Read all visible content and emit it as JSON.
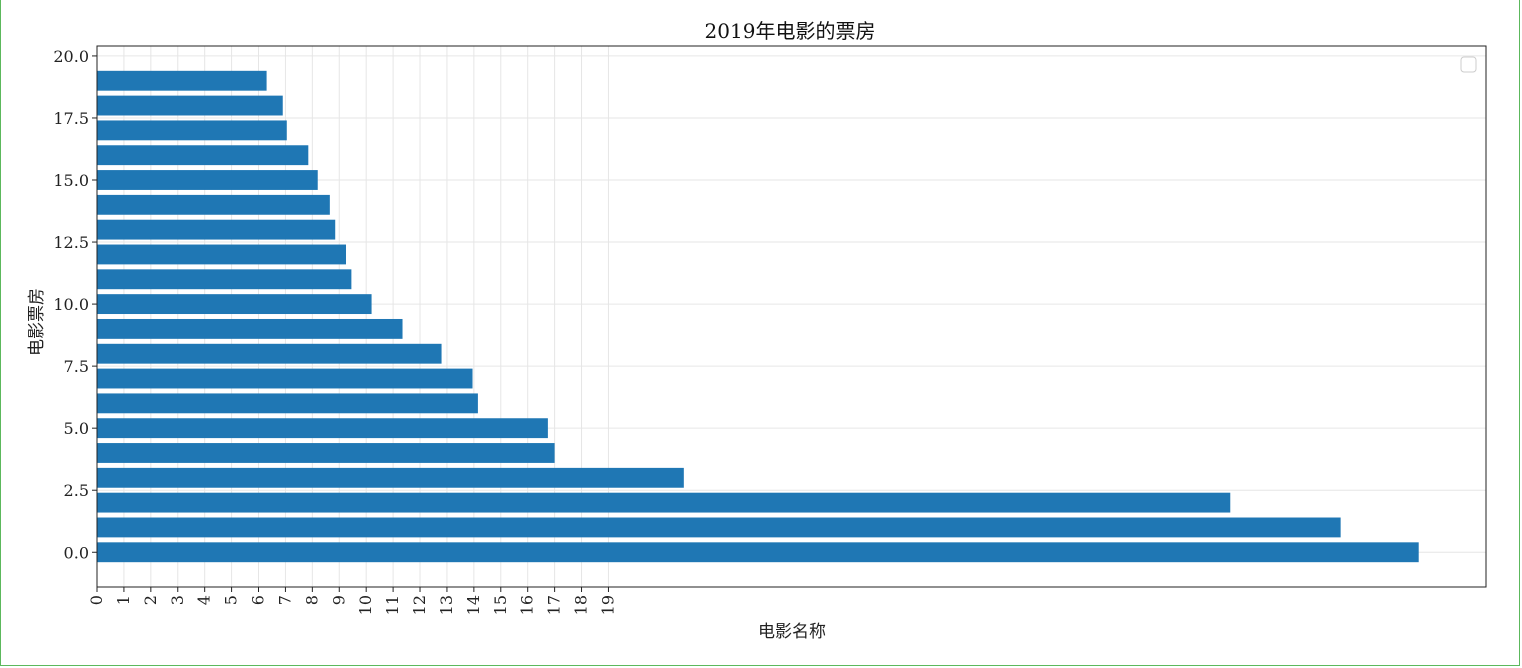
{
  "chart_data": {
    "type": "bar",
    "orientation": "horizontal",
    "title": "2019年电影的票房",
    "xlabel": "电影名称",
    "ylabel": "电影票房",
    "x_ticks": [
      "0",
      "1",
      "2",
      "3",
      "4",
      "5",
      "6",
      "7",
      "8",
      "9",
      "10",
      "11",
      "12",
      "13",
      "14",
      "15",
      "16",
      "17",
      "18",
      "19"
    ],
    "y_ticks": [
      "0.0",
      "2.5",
      "5.0",
      "7.5",
      "10.0",
      "12.5",
      "15.0",
      "17.5",
      "20.0"
    ],
    "y_tick_values": [
      0,
      2.5,
      5,
      7.5,
      10,
      12.5,
      15,
      17.5,
      20
    ],
    "positions": [
      0,
      1,
      2,
      3,
      4,
      5,
      6,
      7,
      8,
      9,
      10,
      11,
      12,
      13,
      14,
      15,
      16,
      17,
      18,
      19
    ],
    "values": [
      49.1,
      46.2,
      42.1,
      21.8,
      17.0,
      16.75,
      14.15,
      13.95,
      12.8,
      11.35,
      10.2,
      9.45,
      9.25,
      8.85,
      8.65,
      8.2,
      7.85,
      7.05,
      6.9,
      6.3
    ],
    "xlim": [
      0,
      51.6
    ],
    "ylim": [
      -1.4,
      20.4
    ],
    "grid": true,
    "legend": "top-right",
    "bar_color": "#1f77b4"
  }
}
